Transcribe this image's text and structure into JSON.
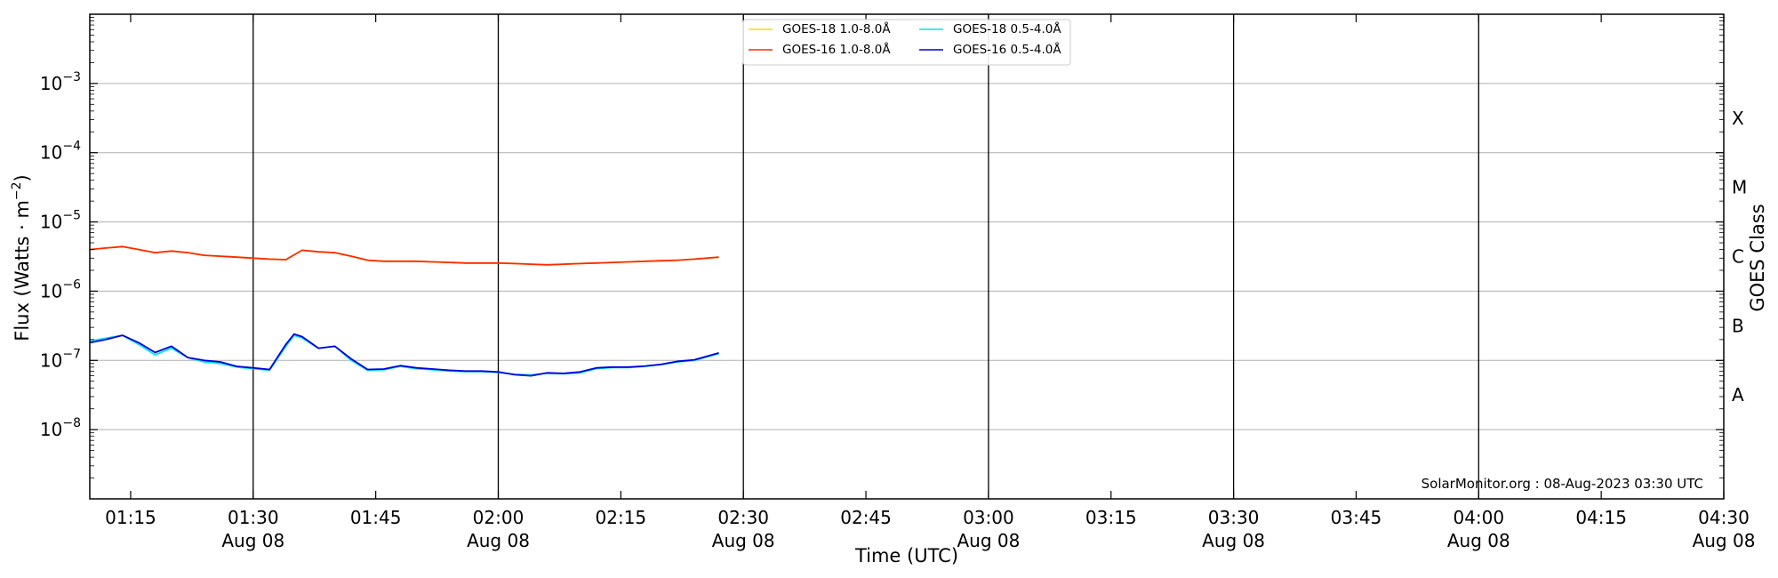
{
  "chart_data": {
    "type": "line",
    "title": "",
    "xlabel": "Time (UTC)",
    "ylabel": "Flux (Watts · m",
    "ylabel_exponent": "−2",
    "ylabel_close": ")",
    "y2label": "GOES Class",
    "yscale": "log",
    "ylim": [
      1e-09,
      0.01
    ],
    "xlim": [
      "01:10",
      "04:30"
    ],
    "grid": "horizontal",
    "legend_position": "top-center",
    "credit": "SolarMonitor.org : 08-Aug-2023 03:30 UTC",
    "y_ticks": [
      {
        "exp": -8,
        "base": "10",
        "power": "−8"
      },
      {
        "exp": -7,
        "base": "10",
        "power": "−7"
      },
      {
        "exp": -6,
        "base": "10",
        "power": "−6"
      },
      {
        "exp": -5,
        "base": "10",
        "power": "−5"
      },
      {
        "exp": -4,
        "base": "10",
        "power": "−4"
      },
      {
        "exp": -3,
        "base": "10",
        "power": "−3"
      }
    ],
    "goes_classes": [
      {
        "label": "A",
        "exp": -7.5
      },
      {
        "label": "B",
        "exp": -6.5
      },
      {
        "label": "C",
        "exp": -5.5
      },
      {
        "label": "M",
        "exp": -4.5
      },
      {
        "label": "X",
        "exp": -3.5
      }
    ],
    "x_ticks": [
      {
        "time": "01:15",
        "date": ""
      },
      {
        "time": "01:30",
        "date": "Aug 08"
      },
      {
        "time": "01:45",
        "date": ""
      },
      {
        "time": "02:00",
        "date": "Aug 08"
      },
      {
        "time": "02:15",
        "date": ""
      },
      {
        "time": "02:30",
        "date": "Aug 08"
      },
      {
        "time": "02:45",
        "date": ""
      },
      {
        "time": "03:00",
        "date": "Aug 08"
      },
      {
        "time": "03:15",
        "date": ""
      },
      {
        "time": "03:30",
        "date": "Aug 08"
      },
      {
        "time": "03:45",
        "date": ""
      },
      {
        "time": "04:00",
        "date": "Aug 08"
      },
      {
        "time": "04:15",
        "date": ""
      },
      {
        "time": "04:30",
        "date": "Aug 08"
      }
    ],
    "vertical_lines": [
      "01:30",
      "02:00",
      "02:30",
      "03:00",
      "03:30",
      "04:00"
    ],
    "series": [
      {
        "name": "GOES-18 1.0-8.0Å",
        "color": "#ffd700",
        "x": [
          "01:10",
          "01:12",
          "01:14",
          "01:16",
          "01:18",
          "01:20",
          "01:22",
          "01:24",
          "01:26",
          "01:28",
          "01:30",
          "01:32",
          "01:34",
          "01:36",
          "01:38",
          "01:40",
          "01:42",
          "01:44",
          "01:46",
          "01:48",
          "01:50",
          "01:52",
          "01:54",
          "01:56",
          "01:58",
          "02:00",
          "02:02",
          "02:04",
          "02:06",
          "02:08",
          "02:10",
          "02:12",
          "02:14",
          "02:16",
          "02:18",
          "02:20",
          "02:22",
          "02:24",
          "02:27"
        ],
        "y": [
          4e-06,
          4.2e-06,
          4.4e-06,
          4e-06,
          3.6e-06,
          3.8e-06,
          3.6e-06,
          3.3e-06,
          3.2e-06,
          3.1e-06,
          3e-06,
          2.9e-06,
          2.85e-06,
          3.9e-06,
          3.7e-06,
          3.6e-06,
          3.2e-06,
          2.8e-06,
          2.7e-06,
          2.7e-06,
          2.7e-06,
          2.65e-06,
          2.6e-06,
          2.55e-06,
          2.55e-06,
          2.55e-06,
          2.5e-06,
          2.45e-06,
          2.4e-06,
          2.45e-06,
          2.5e-06,
          2.55e-06,
          2.6e-06,
          2.65e-06,
          2.7e-06,
          2.75e-06,
          2.8e-06,
          2.9e-06,
          3.1e-06
        ]
      },
      {
        "name": "GOES-16 1.0-8.0Å",
        "color": "#ff2a00",
        "x": [
          "01:10",
          "01:12",
          "01:14",
          "01:16",
          "01:18",
          "01:20",
          "01:22",
          "01:24",
          "01:26",
          "01:28",
          "01:30",
          "01:32",
          "01:34",
          "01:36",
          "01:38",
          "01:40",
          "01:42",
          "01:44",
          "01:46",
          "01:48",
          "01:50",
          "01:52",
          "01:54",
          "01:56",
          "01:58",
          "02:00",
          "02:02",
          "02:04",
          "02:06",
          "02:08",
          "02:10",
          "02:12",
          "02:14",
          "02:16",
          "02:18",
          "02:20",
          "02:22",
          "02:24",
          "02:27"
        ],
        "y": [
          4e-06,
          4.2e-06,
          4.4e-06,
          4e-06,
          3.6e-06,
          3.8e-06,
          3.6e-06,
          3.3e-06,
          3.2e-06,
          3.1e-06,
          3e-06,
          2.9e-06,
          2.85e-06,
          3.9e-06,
          3.7e-06,
          3.6e-06,
          3.2e-06,
          2.8e-06,
          2.7e-06,
          2.7e-06,
          2.7e-06,
          2.65e-06,
          2.6e-06,
          2.55e-06,
          2.55e-06,
          2.55e-06,
          2.5e-06,
          2.45e-06,
          2.4e-06,
          2.45e-06,
          2.5e-06,
          2.55e-06,
          2.6e-06,
          2.65e-06,
          2.7e-06,
          2.75e-06,
          2.8e-06,
          2.9e-06,
          3.1e-06
        ]
      },
      {
        "name": "GOES-18 0.5-4.0Å",
        "color": "#00e5ee",
        "x": [
          "01:10",
          "01:12",
          "01:14",
          "01:16",
          "01:18",
          "01:20",
          "01:22",
          "01:24",
          "01:26",
          "01:28",
          "01:30",
          "01:32",
          "01:34",
          "01:35",
          "01:36",
          "01:38",
          "01:40",
          "01:42",
          "01:44",
          "01:46",
          "01:48",
          "01:50",
          "01:52",
          "01:54",
          "01:56",
          "01:58",
          "02:00",
          "02:02",
          "02:04",
          "02:06",
          "02:08",
          "02:10",
          "02:12",
          "02:14",
          "02:16",
          "02:18",
          "02:20",
          "02:22",
          "02:24",
          "02:27"
        ],
        "y": [
          1.9e-07,
          2.1e-07,
          2.3e-07,
          1.7e-07,
          1.2e-07,
          1.5e-07,
          1.1e-07,
          9.5e-08,
          9e-08,
          8e-08,
          7.6e-08,
          7.2e-08,
          1.6e-07,
          2.3e-07,
          2.1e-07,
          1.5e-07,
          1.6e-07,
          1e-07,
          7.2e-08,
          7.3e-08,
          8.2e-08,
          7.6e-08,
          7.3e-08,
          7e-08,
          6.9e-08,
          6.9e-08,
          6.7e-08,
          6.3e-08,
          6.2e-08,
          6.5e-08,
          6.4e-08,
          6.6e-08,
          7.6e-08,
          7.9e-08,
          7.9e-08,
          8.2e-08,
          8.7e-08,
          9.5e-08,
          1e-07,
          1.25e-07
        ]
      },
      {
        "name": "GOES-16 0.5-4.0Å",
        "color": "#0000dd",
        "x": [
          "01:10",
          "01:12",
          "01:14",
          "01:16",
          "01:18",
          "01:20",
          "01:22",
          "01:24",
          "01:26",
          "01:28",
          "01:30",
          "01:32",
          "01:34",
          "01:35",
          "01:36",
          "01:38",
          "01:40",
          "01:42",
          "01:44",
          "01:46",
          "01:48",
          "01:50",
          "01:52",
          "01:54",
          "01:56",
          "01:58",
          "02:00",
          "02:02",
          "02:04",
          "02:06",
          "02:08",
          "02:10",
          "02:12",
          "02:14",
          "02:16",
          "02:18",
          "02:20",
          "02:22",
          "02:24",
          "02:27"
        ],
        "y": [
          1.8e-07,
          2e-07,
          2.3e-07,
          1.8e-07,
          1.3e-07,
          1.6e-07,
          1.1e-07,
          1e-07,
          9.5e-08,
          8.2e-08,
          7.8e-08,
          7.4e-08,
          1.7e-07,
          2.4e-07,
          2.2e-07,
          1.5e-07,
          1.6e-07,
          1.05e-07,
          7.4e-08,
          7.5e-08,
          8.4e-08,
          7.8e-08,
          7.5e-08,
          7.2e-08,
          7e-08,
          7e-08,
          6.8e-08,
          6.2e-08,
          6e-08,
          6.6e-08,
          6.5e-08,
          6.8e-08,
          7.8e-08,
          8e-08,
          8e-08,
          8.3e-08,
          8.8e-08,
          9.7e-08,
          1.02e-07,
          1.28e-07
        ]
      }
    ]
  }
}
